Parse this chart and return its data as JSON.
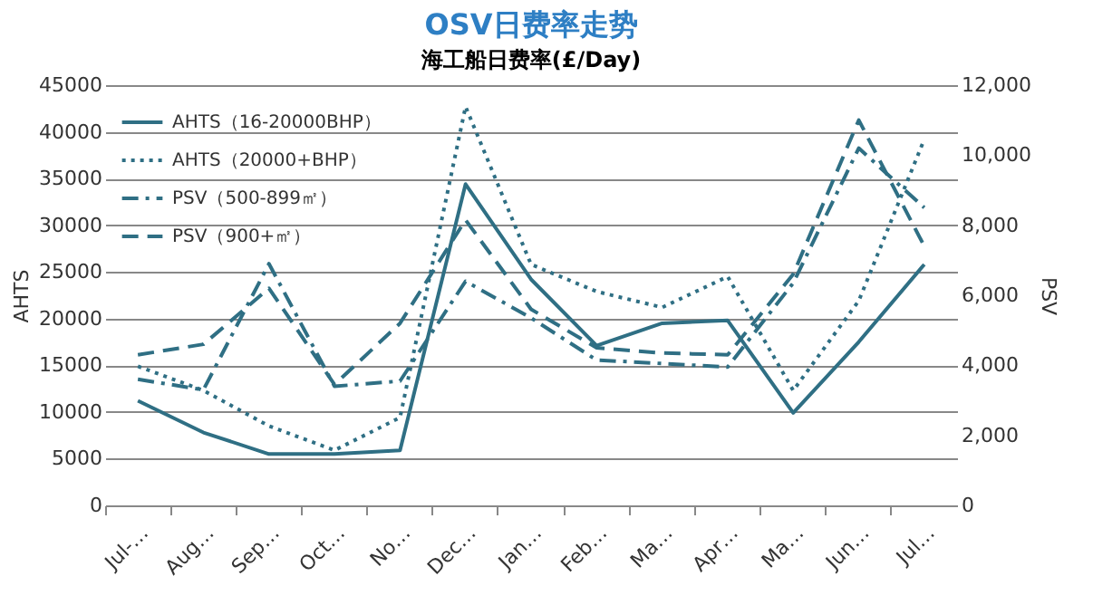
{
  "chart_data": {
    "type": "line",
    "title": "OSV日费率走势",
    "subtitle": "海工船日费率(£/Day)",
    "ylabel": "AHTS",
    "y2label": "PSV",
    "categories": [
      "Jul-…",
      "Aug…",
      "Sep…",
      "Oct…",
      "No…",
      "Dec…",
      "Jan…",
      "Feb…",
      "Ma…",
      "Apr…",
      "Ma…",
      "Jun…",
      "Jul…"
    ],
    "ylim": [
      0,
      45000
    ],
    "yticks": [
      0,
      5000,
      10000,
      15000,
      20000,
      25000,
      30000,
      35000,
      40000,
      45000
    ],
    "y2lim": [
      0,
      12000
    ],
    "y2ticks": [
      0,
      {
        "value": 2000,
        "label": "2,000"
      },
      {
        "value": 4000,
        "label": "4,000"
      },
      {
        "value": 6000,
        "label": "6,000"
      },
      {
        "value": 8000,
        "label": "8,000"
      },
      {
        "value": 10000,
        "label": "10,000"
      },
      {
        "value": 12000,
        "label": "12,000"
      }
    ],
    "grid": "y",
    "legend": "top left",
    "series": [
      {
        "name": "AHTS（16-20000BHP）",
        "color": "#2f6f84",
        "line_style": "solid",
        "values": [
          11200,
          7800,
          5500,
          5500,
          5900,
          34400,
          24200,
          17100,
          19500,
          19800,
          9900,
          17500,
          25800
        ]
      },
      {
        "name": "AHTS（20000+BHP）",
        "color": "#2f6f84",
        "line_style": "dotted",
        "values": [
          14900,
          12300,
          8500,
          5900,
          9400,
          42700,
          25800,
          22900,
          21200,
          24500,
          12300,
          21900,
          39200
        ]
      },
      {
        "name": "PSV（500-899㎡）",
        "color": "#2f6f84",
        "line_style": "dashdot",
        "axis": "y2",
        "values": [
          3600,
          3300,
          6900,
          3400,
          3550,
          6400,
          5350,
          4150,
          4050,
          3950,
          6350,
          10200,
          8500
        ]
      },
      {
        "name": "PSV（900+㎡）",
        "color": "#2f6f84",
        "line_style": "dashed",
        "axis": "y2",
        "values": [
          4300,
          4600,
          6200,
          3450,
          5200,
          8150,
          5600,
          4500,
          4350,
          4300,
          6600,
          11000,
          7400
        ]
      }
    ]
  }
}
